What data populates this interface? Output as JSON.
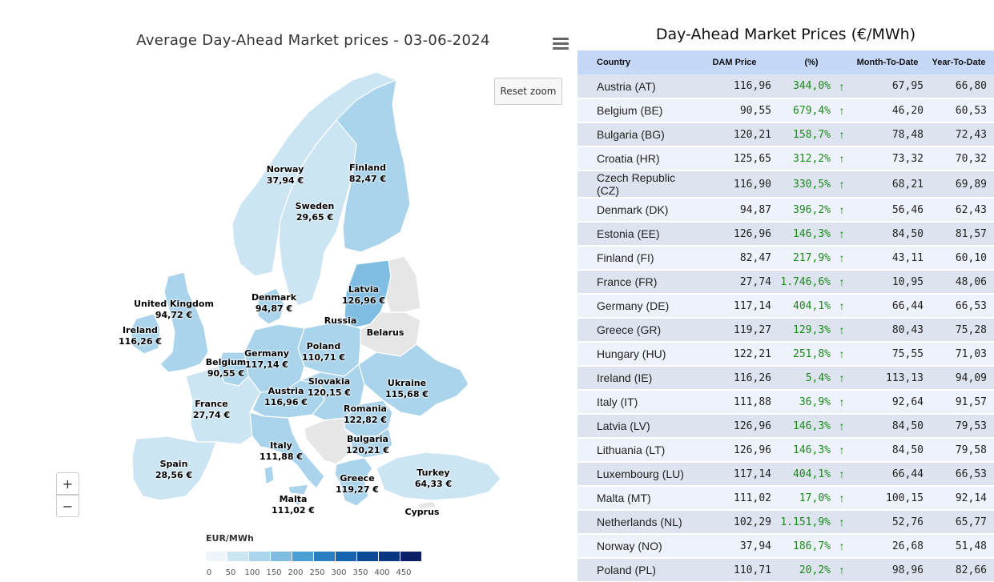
{
  "map": {
    "title": "Average Day-Ahead Market prices - 03-06-2024",
    "reset_zoom_label": "Reset zoom",
    "zoom_in_label": "+",
    "zoom_out_label": "−",
    "menu_icon": "hamburger-menu-icon",
    "legend": {
      "title": "EUR/MWh",
      "ticks": [
        "0",
        "50",
        "100",
        "150",
        "200",
        "250",
        "300",
        "350",
        "400",
        "450"
      ],
      "colors": [
        "#eef6fb",
        "#cce5f3",
        "#a9d4ec",
        "#7fbde3",
        "#4b9fd5",
        "#2a7fc2",
        "#1565ae",
        "#0d4a96",
        "#0a3580",
        "#0b1f66"
      ]
    },
    "regions": [
      {
        "name": "Norway",
        "value": "37,94 €",
        "price": 37.94
      },
      {
        "name": "Sweden",
        "value": "29,65 €",
        "price": 29.65
      },
      {
        "name": "Finland",
        "value": "82,47 €",
        "price": 82.47
      },
      {
        "name": "Latvia",
        "value": "126,96 €",
        "price": 126.96
      },
      {
        "name": "Russia",
        "value": "",
        "price": null
      },
      {
        "name": "Denmark",
        "value": "94,87 €",
        "price": 94.87
      },
      {
        "name": "United Kingdom",
        "value": "94,72 €",
        "price": 94.72
      },
      {
        "name": "Ireland",
        "value": "116,26 €",
        "price": 116.26
      },
      {
        "name": "Belarus",
        "value": "",
        "price": null
      },
      {
        "name": "Poland",
        "value": "110,71 €",
        "price": 110.71
      },
      {
        "name": "Germany",
        "value": "117,14 €",
        "price": 117.14
      },
      {
        "name": "Belgium",
        "value": "90,55 €",
        "price": 90.55
      },
      {
        "name": "Slovakia",
        "value": "120,15 €",
        "price": 120.15
      },
      {
        "name": "Ukraine",
        "value": "115,68 €",
        "price": 115.68
      },
      {
        "name": "Austria",
        "value": "116,96 €",
        "price": 116.96
      },
      {
        "name": "France",
        "value": "27,74 €",
        "price": 27.74
      },
      {
        "name": "Romania",
        "value": "122,82 €",
        "price": 122.82
      },
      {
        "name": "Bulgaria",
        "value": "120,21 €",
        "price": 120.21
      },
      {
        "name": "Italy",
        "value": "111,88 €",
        "price": 111.88
      },
      {
        "name": "Spain",
        "value": "28,56 €",
        "price": 28.56
      },
      {
        "name": "Turkey",
        "value": "64,33 €",
        "price": 64.33
      },
      {
        "name": "Greece",
        "value": "119,27 €",
        "price": 119.27
      },
      {
        "name": "Malta",
        "value": "111,02 €",
        "price": 111.02
      },
      {
        "name": "Cyprus",
        "value": "",
        "price": null
      }
    ]
  },
  "table": {
    "title": "Day-Ahead Market Prices (€/MWh)",
    "headers": [
      "Country",
      "DAM Price",
      "(%)",
      "Month-To-Date",
      "Year-To-Date"
    ],
    "trend_icon": "arrow-up-icon",
    "rows": [
      {
        "country": "Austria (AT)",
        "dam": "116,96",
        "pct": "344,0%",
        "mtd": "67,95",
        "ytd": "66,80"
      },
      {
        "country": "Belgium (BE)",
        "dam": "90,55",
        "pct": "679,4%",
        "mtd": "46,20",
        "ytd": "60,53"
      },
      {
        "country": "Bulgaria (BG)",
        "dam": "120,21",
        "pct": "158,7%",
        "mtd": "78,48",
        "ytd": "72,43"
      },
      {
        "country": "Croatia (HR)",
        "dam": "125,65",
        "pct": "312,2%",
        "mtd": "73,32",
        "ytd": "70,32"
      },
      {
        "country": "Czech Republic (CZ)",
        "dam": "116,90",
        "pct": "330,5%",
        "mtd": "68,21",
        "ytd": "69,89"
      },
      {
        "country": "Denmark (DK)",
        "dam": "94,87",
        "pct": "396,2%",
        "mtd": "56,46",
        "ytd": "62,43"
      },
      {
        "country": "Estonia (EE)",
        "dam": "126,96",
        "pct": "146,3%",
        "mtd": "84,50",
        "ytd": "81,57"
      },
      {
        "country": "Finland (FI)",
        "dam": "82,47",
        "pct": "217,9%",
        "mtd": "43,11",
        "ytd": "60,10"
      },
      {
        "country": "France (FR)",
        "dam": "27,74",
        "pct": "1.746,6%",
        "mtd": "10,95",
        "ytd": "48,06"
      },
      {
        "country": "Germany (DE)",
        "dam": "117,14",
        "pct": "404,1%",
        "mtd": "66,44",
        "ytd": "66,53"
      },
      {
        "country": "Greece (GR)",
        "dam": "119,27",
        "pct": "129,3%",
        "mtd": "80,43",
        "ytd": "75,28"
      },
      {
        "country": "Hungary (HU)",
        "dam": "122,21",
        "pct": "251,8%",
        "mtd": "75,55",
        "ytd": "71,03"
      },
      {
        "country": "Ireland (IE)",
        "dam": "116,26",
        "pct": "5,4%",
        "mtd": "113,13",
        "ytd": "94,09"
      },
      {
        "country": "Italy (IT)",
        "dam": "111,88",
        "pct": "36,9%",
        "mtd": "92,64",
        "ytd": "91,57"
      },
      {
        "country": "Latvia (LV)",
        "dam": "126,96",
        "pct": "146,3%",
        "mtd": "84,50",
        "ytd": "79,53"
      },
      {
        "country": "Lithuania (LT)",
        "dam": "126,96",
        "pct": "146,3%",
        "mtd": "84,50",
        "ytd": "79,58"
      },
      {
        "country": "Luxembourg (LU)",
        "dam": "117,14",
        "pct": "404,1%",
        "mtd": "66,44",
        "ytd": "66,53"
      },
      {
        "country": "Malta (MT)",
        "dam": "111,02",
        "pct": "17,0%",
        "mtd": "100,15",
        "ytd": "92,14"
      },
      {
        "country": "Netherlands (NL)",
        "dam": "102,29",
        "pct": "1.151,9%",
        "mtd": "52,76",
        "ytd": "65,77"
      },
      {
        "country": "Norway (NO)",
        "dam": "37,94",
        "pct": "186,7%",
        "mtd": "26,68",
        "ytd": "51,48"
      },
      {
        "country": "Poland (PL)",
        "dam": "110,71",
        "pct": "20,2%",
        "mtd": "98,96",
        "ytd": "82,66"
      }
    ]
  }
}
